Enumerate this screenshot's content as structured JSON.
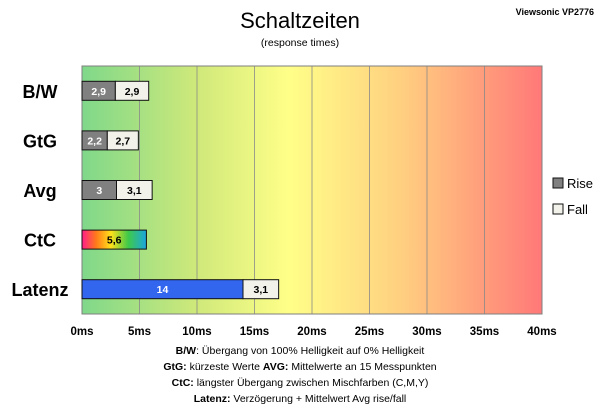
{
  "chart_data": {
    "type": "bar",
    "orientation": "horizontal",
    "stacked": true,
    "title": "Schaltzeiten",
    "subtitle": "(response times)",
    "corner_label": "Viewsonic VP2776",
    "categories": [
      "B/W",
      "GtG",
      "Avg",
      "CtC",
      "Latenz"
    ],
    "series": [
      {
        "name": "Rise",
        "values": [
          2.9,
          2.2,
          3,
          5.6,
          14
        ],
        "labels": [
          "2,9",
          "2,2",
          "3",
          "5,6",
          "14"
        ],
        "colors": [
          "#808080",
          "#808080",
          "#808080",
          "gradient-rainbow",
          "#3366ee"
        ]
      },
      {
        "name": "Fall",
        "values": [
          2.9,
          2.7,
          3.1,
          null,
          3.1
        ],
        "labels": [
          "2,9",
          "2,7",
          "3,1",
          "",
          "3,1"
        ],
        "colors": [
          "#f2f2ea",
          "#f2f2ea",
          "#f2f2ea",
          "#f2f2ea",
          "#f2f2ea"
        ]
      }
    ],
    "xlim": [
      0,
      40
    ],
    "xticks": [
      0,
      5,
      10,
      15,
      20,
      25,
      30,
      35,
      40
    ],
    "xtick_labels": [
      "0ms",
      "5ms",
      "10ms",
      "15ms",
      "20ms",
      "25ms",
      "30ms",
      "35ms",
      "40ms"
    ],
    "grid": true,
    "legend_position": "right",
    "background_gradient": [
      "#7fd88a",
      "#cfe97a",
      "#ffff88",
      "#ffce80",
      "#ff7878"
    ]
  },
  "notes": [
    [
      {
        "b": "B/W"
      },
      {
        "t": ":  Übergang von 100% Helligkeit auf 0% Helligkeit"
      }
    ],
    [
      {
        "b": "GtG:"
      },
      {
        "t": " kürzeste  Werte        "
      },
      {
        "b": "AVG:"
      },
      {
        "t": " Mittelwerte  an 15 Messpunkten"
      }
    ],
    [
      {
        "b": "CtC:"
      },
      {
        "t": " längster Übergang  zwischen Mischfarben  (C,M,Y)"
      }
    ],
    [
      {
        "b": "Latenz:"
      },
      {
        "t": " Verzögerung  + Mittelwert Avg rise/fall"
      }
    ]
  ]
}
